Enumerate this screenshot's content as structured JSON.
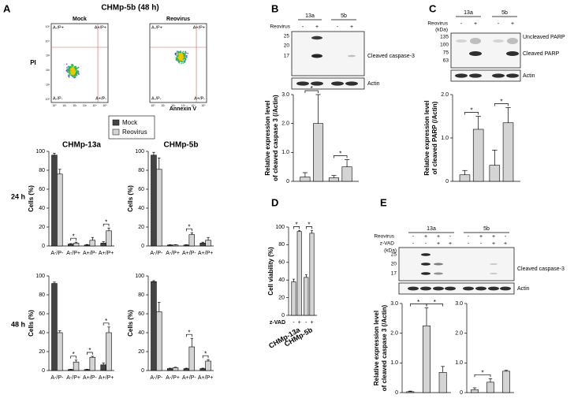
{
  "panel_labels": [
    "A",
    "B",
    "C",
    "D",
    "E"
  ],
  "row_labels": [
    "24 h",
    "48 h"
  ],
  "flow": {
    "title": "CHMp-5b (48 h)",
    "plots": [
      "Mock",
      "Reovirus"
    ],
    "quadrants": [
      "A-/P+",
      "A+/P+",
      "A-/P-",
      "A+/P-"
    ],
    "y_label": "PI",
    "x_label": "Annexin V",
    "axis_ticks": [
      "10⁰",
      "10¹",
      "10²",
      "10³",
      "10⁴",
      "10⁵"
    ]
  },
  "blots": {
    "B": {
      "cell_lines": [
        "13a",
        "5b"
      ],
      "treatment": "Reovirus",
      "signs": [
        "-",
        "+",
        "-",
        "+"
      ],
      "markers": [
        "25",
        "20",
        "17"
      ],
      "bands": [
        "Cleaved caspase-3",
        "Actin"
      ]
    },
    "C": {
      "cell_lines": [
        "13a",
        "5b"
      ],
      "treatment": "Reovirus",
      "unit": "(kDa)",
      "signs": [
        "-",
        "+",
        "-",
        "+"
      ],
      "markers": [
        "135",
        "100",
        "75",
        "63"
      ],
      "bands": [
        "Uncleaved PARP",
        "Cleaved PARP",
        "Actin"
      ]
    },
    "E": {
      "cell_lines": [
        "13a",
        "5b"
      ],
      "treatments": [
        {
          "name": "Reovirus",
          "signs": [
            "-",
            "+",
            "+",
            "-",
            "-",
            "+",
            "+",
            "-"
          ]
        },
        {
          "name": "z-VAD",
          "signs": [
            "-",
            "-",
            "+",
            "+",
            "-",
            "-",
            "+",
            "+"
          ]
        }
      ],
      "unit": "(kDa)",
      "markers": [
        "25",
        "20",
        "17"
      ],
      "bands": [
        "Cleaved caspase-3",
        "Actin"
      ]
    }
  },
  "chart_data": [
    {
      "type": "bar",
      "title": "CHMp-13a",
      "y_label": "Cells (%)",
      "categories": [
        "A-/P-",
        "A-/P+",
        "A+/P-",
        "A+/P+"
      ],
      "series": [
        {
          "name": "Mock",
          "color": "#444444",
          "values": [
            96,
            2,
            1,
            3
          ],
          "errors": [
            2,
            0.5,
            0.5,
            1.5
          ]
        },
        {
          "name": "Reovirus",
          "color": "#d4d4d4",
          "values": [
            76,
            3,
            6,
            16
          ],
          "errors": [
            5,
            1,
            3,
            3
          ]
        }
      ],
      "ylim": [
        0,
        100
      ],
      "yticks": [
        0,
        20,
        40,
        60,
        80,
        100
      ],
      "significance_label": "*"
    },
    {
      "type": "bar",
      "title": "CHMp-5b",
      "y_label": "Cells (%)",
      "categories": [
        "A-/P-",
        "A-/P+",
        "A+/P-",
        "A+/P+"
      ],
      "series": [
        {
          "name": "Mock",
          "color": "#444444",
          "values": [
            96,
            1,
            1,
            3
          ],
          "errors": [
            3,
            0.3,
            0.3,
            1
          ]
        },
        {
          "name": "Reovirus",
          "color": "#d4d4d4",
          "values": [
            81,
            1,
            12,
            6
          ],
          "errors": [
            12,
            0.3,
            2,
            3
          ]
        }
      ],
      "ylim": [
        0,
        100
      ],
      "yticks": [
        0,
        20,
        40,
        60,
        80,
        100
      ],
      "significance_label": "*"
    },
    {
      "type": "bar",
      "y_label": "Cells (%)",
      "categories": [
        "A-/P-",
        "A-/P+",
        "A+/P-",
        "A+/P+"
      ],
      "series": [
        {
          "name": "Mock",
          "color": "#444444",
          "values": [
            92,
            1,
            1,
            6
          ],
          "errors": [
            1.5,
            0.3,
            0.3,
            2
          ]
        },
        {
          "name": "Reovirus",
          "color": "#d4d4d4",
          "values": [
            40,
            9,
            14,
            40
          ],
          "errors": [
            2,
            2,
            1,
            6
          ]
        }
      ],
      "ylim": [
        0,
        100
      ],
      "yticks": [
        0,
        20,
        40,
        60,
        80,
        100
      ],
      "significance_label": "*"
    },
    {
      "type": "bar",
      "y_label": "Cells (%)",
      "categories": [
        "A-/P-",
        "A-/P+",
        "A+/P-",
        "A+/P+"
      ],
      "series": [
        {
          "name": "Mock",
          "color": "#444444",
          "values": [
            94,
            2,
            2,
            2
          ],
          "errors": [
            1,
            0.5,
            0.5,
            0.5
          ]
        },
        {
          "name": "Reovirus",
          "color": "#d4d4d4",
          "values": [
            62,
            3,
            25,
            10
          ],
          "errors": [
            10,
            0.5,
            9,
            1.5
          ]
        }
      ],
      "ylim": [
        0,
        100
      ],
      "yticks": [
        0,
        20,
        40,
        60,
        80,
        100
      ],
      "significance_label": "*"
    },
    {
      "type": "bar",
      "y_label": [
        "Relative expression level",
        "of cleaved caspase 3 (/Actin)"
      ],
      "categories": [
        null,
        null,
        null,
        null
      ],
      "series": [
        {
          "color": "#d4d4d4",
          "values": [
            0.15,
            2.0,
            0.12,
            0.5
          ],
          "errors": [
            0.15,
            1.0,
            0.08,
            0.25
          ]
        }
      ],
      "ylim": [
        0,
        3
      ],
      "yticks": [
        0,
        {
          "value": 1,
          "label": "1.0"
        },
        {
          "value": 2,
          "label": "2.0"
        },
        {
          "value": 3,
          "label": "3.0"
        }
      ],
      "significance_label": "*"
    },
    {
      "type": "bar",
      "y_label": [
        "Relative expression level",
        "of cleaved PARP (/Actin)"
      ],
      "categories": [
        null,
        null,
        null,
        null
      ],
      "series": [
        {
          "color": "#d4d4d4",
          "values": [
            0.15,
            1.2,
            0.37,
            1.35
          ],
          "errors": [
            0.1,
            0.3,
            0.35,
            0.35
          ]
        }
      ],
      "ylim": [
        0,
        2
      ],
      "yticks": [
        0,
        {
          "value": 1,
          "label": "1.0"
        },
        {
          "value": 2,
          "label": "2.0"
        }
      ],
      "significance_label": "*"
    },
    {
      "type": "bar",
      "y_label": "Cell viability (%)",
      "x_label": "z-VAD",
      "categories": [
        "-",
        "+",
        "-",
        "+"
      ],
      "group_labels": [
        "CHMp-13a",
        "CHMp-5b"
      ],
      "series": [
        {
          "color": "#d4d4d4",
          "values": [
            38,
            95,
            43,
            93
          ],
          "errors": [
            3,
            1,
            3,
            3
          ]
        }
      ],
      "ylim": [
        0,
        100
      ],
      "yticks": [
        0,
        20,
        40,
        60,
        80,
        100
      ],
      "significance_label": "*"
    },
    {
      "type": "bar",
      "y_label": [
        "Relative expression level",
        "of cleaved caspase 3 (/Actin)"
      ],
      "categories": [
        null,
        null,
        null
      ],
      "series": [
        {
          "color": "#d4d4d4",
          "values": [
            0.03,
            2.25,
            0.68
          ],
          "errors": [
            0.02,
            0.6,
            0.2
          ]
        }
      ],
      "ylim": [
        0,
        3
      ],
      "yticks": [
        0,
        {
          "value": 1,
          "label": "1.0"
        },
        {
          "value": 2,
          "label": "2.0"
        },
        {
          "value": 3,
          "label": "3.0"
        }
      ],
      "significance_label": "*"
    },
    {
      "type": "bar",
      "categories": [
        null,
        null,
        null
      ],
      "series": [
        {
          "color": "#d4d4d4",
          "values": [
            0.1,
            0.35,
            0.72
          ],
          "errors": [
            0.06,
            0.12,
            0.03
          ]
        }
      ],
      "ylim": [
        0,
        3
      ],
      "yticks": [
        0,
        {
          "value": 1,
          "label": "1.0"
        },
        {
          "value": 2,
          "label": "2.0"
        },
        {
          "value": 3,
          "label": "3.0"
        }
      ],
      "significance_label": "*"
    }
  ]
}
